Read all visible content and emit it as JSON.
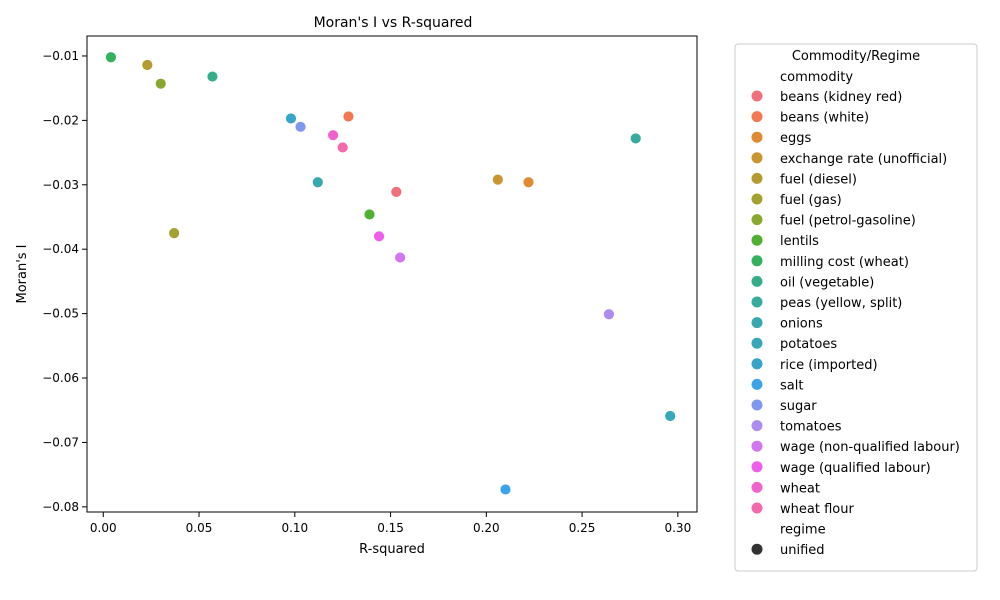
{
  "chart_data": {
    "type": "scatter",
    "title": "Moran's I vs R-squared",
    "xlabel": "R-squared",
    "ylabel": "Moran's I",
    "xlim": [
      -0.0085,
      0.31
    ],
    "ylim": [
      -0.0808,
      -0.0069
    ],
    "xticks": [
      0.0,
      0.05,
      0.1,
      0.15,
      0.2,
      0.25,
      0.3
    ],
    "xtick_labels": [
      "0.00",
      "0.05",
      "0.10",
      "0.15",
      "0.20",
      "0.25",
      "0.30"
    ],
    "yticks": [
      -0.01,
      -0.02,
      -0.03,
      -0.04,
      -0.05,
      -0.06,
      -0.07,
      -0.08
    ],
    "ytick_labels": [
      "−0.01",
      "−0.02",
      "−0.03",
      "−0.04",
      "−0.05",
      "−0.06",
      "−0.07",
      "−0.08"
    ],
    "grid": false,
    "legend": {
      "title": "Commodity/Regime",
      "placement": "outside-right",
      "commodity_header": "commodity",
      "regime_header": "regime",
      "regime_entries": [
        "unified"
      ]
    },
    "series": [
      {
        "name": "beans (kidney red)",
        "color": "#f0717c",
        "x": [
          0.153
        ],
        "y": [
          -0.0311
        ]
      },
      {
        "name": "beans (white)",
        "color": "#f37751",
        "x": [
          0.128
        ],
        "y": [
          -0.0194
        ]
      },
      {
        "name": "eggs",
        "color": "#e08a31",
        "x": [
          0.222
        ],
        "y": [
          -0.0296
        ]
      },
      {
        "name": "exchange rate (unofficial)",
        "color": "#c99631",
        "x": [
          0.206
        ],
        "y": [
          -0.0292
        ]
      },
      {
        "name": "fuel (diesel)",
        "color": "#b49b2f",
        "x": [
          0.023
        ],
        "y": [
          -0.0114
        ]
      },
      {
        "name": "fuel (gas)",
        "color": "#a3a12f",
        "x": [
          0.037
        ],
        "y": [
          -0.0375
        ]
      },
      {
        "name": "fuel (petrol-gasoline)",
        "color": "#89a830",
        "x": [
          0.03
        ],
        "y": [
          -0.0143
        ]
      },
      {
        "name": "lentils",
        "color": "#50b130",
        "x": [
          0.139
        ],
        "y": [
          -0.0346
        ]
      },
      {
        "name": "milling cost (wheat)",
        "color": "#33b15e",
        "x": [
          0.004
        ],
        "y": [
          -0.0102
        ]
      },
      {
        "name": "oil (vegetable)",
        "color": "#35ae88",
        "x": [
          0.057
        ],
        "y": [
          -0.0132
        ]
      },
      {
        "name": "peas (yellow, split)",
        "color": "#36ab9e",
        "x": [
          0.278
        ],
        "y": [
          -0.0228
        ]
      },
      {
        "name": "onions",
        "color": "#37a8ad",
        "x": [
          0.112
        ],
        "y": [
          -0.0296
        ]
      },
      {
        "name": "potatoes",
        "color": "#38a7b9",
        "x": [
          0.296
        ],
        "y": [
          -0.0659
        ]
      },
      {
        "name": "rice (imported)",
        "color": "#39a4ca",
        "x": [
          0.098
        ],
        "y": [
          -0.0197
        ]
      },
      {
        "name": "salt",
        "color": "#3ba3e8",
        "x": [
          0.21
        ],
        "y": [
          -0.0773
        ]
      },
      {
        "name": "sugar",
        "color": "#7f97ee",
        "x": [
          0.103
        ],
        "y": [
          -0.021
        ]
      },
      {
        "name": "tomatoes",
        "color": "#ad8cf0",
        "x": [
          0.264
        ],
        "y": [
          -0.0501
        ]
      },
      {
        "name": "wage (non-qualified labour)",
        "color": "#d275ef",
        "x": [
          0.155
        ],
        "y": [
          -0.0413
        ]
      },
      {
        "name": "wage (qualified labour)",
        "color": "#ed5feb",
        "x": [
          0.144
        ],
        "y": [
          -0.038
        ]
      },
      {
        "name": "wheat",
        "color": "#f163cc",
        "x": [
          0.12
        ],
        "y": [
          -0.0223
        ]
      },
      {
        "name": "wheat flour",
        "color": "#f468ac",
        "x": [
          0.125
        ],
        "y": [
          -0.0242
        ]
      }
    ]
  }
}
